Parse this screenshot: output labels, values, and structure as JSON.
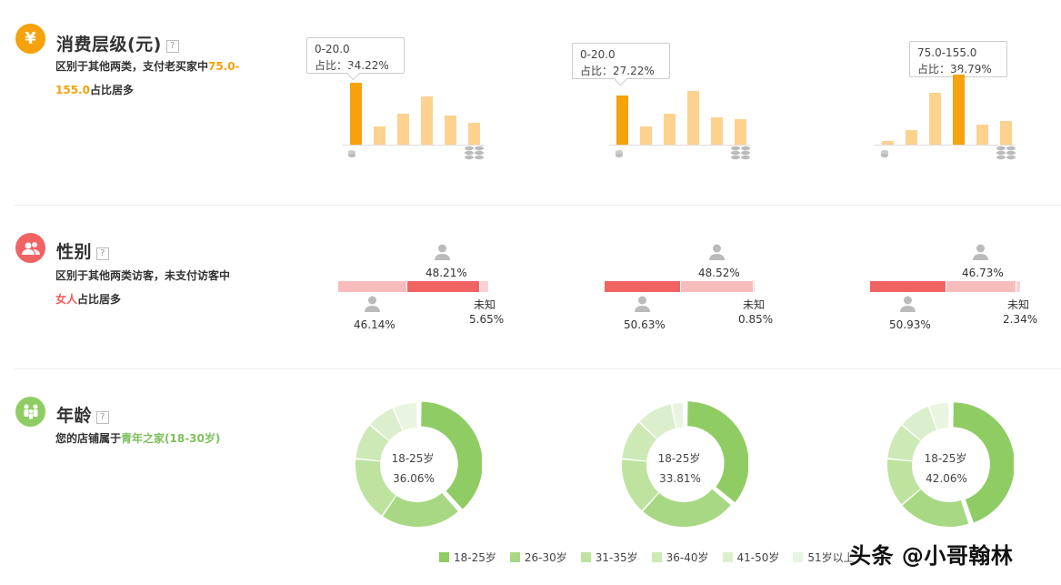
{
  "colors": {
    "orange": "#f5a20c",
    "orange_light": "#fdd28f",
    "red": "#f16363",
    "red_light": "#f8bcbc",
    "green": [
      "#8fcd64",
      "#a8d884",
      "#bde39f",
      "#cde9b6",
      "#dcefcd",
      "#e9f5e0"
    ]
  },
  "spending": {
    "title": "消费层级(元)",
    "help": "?",
    "desc_pre": "区别于其他两类，支付老买家中",
    "desc_hl_a": "75.0-",
    "desc_hl_b": "155.0",
    "desc_post": "占比居多",
    "charts": [
      {
        "tooltip_range": "0-20.0",
        "tooltip_pct": "占比：34.22%",
        "values": [
          34.22,
          10,
          17,
          27,
          16,
          12
        ],
        "highlight": 0
      },
      {
        "tooltip_range": "0-20.0",
        "tooltip_pct": "占比：27.22%",
        "values": [
          27.22,
          10,
          17,
          30,
          15,
          14
        ],
        "highlight": 0
      },
      {
        "tooltip_range": "75.0-155.0",
        "tooltip_pct": "占比：38.79%",
        "values": [
          2,
          8,
          29,
          38.79,
          11,
          13
        ],
        "highlight": 3
      }
    ]
  },
  "gender": {
    "title": "性别",
    "help": "?",
    "desc_line1": "区别于其他两类访客，未支付访客中",
    "desc_hl": "女人",
    "desc_post": "占比居多",
    "unknown_label": "未知",
    "charts": [
      {
        "female": "48.21%",
        "male": "46.14%",
        "unknown": "5.65%",
        "female_v": 48.21,
        "male_v": 46.14,
        "unknown_v": 5.65,
        "dominant": "female"
      },
      {
        "female": "48.52%",
        "male": "50.63%",
        "unknown": "0.85%",
        "female_v": 48.52,
        "male_v": 50.63,
        "unknown_v": 0.85,
        "dominant": "male"
      },
      {
        "female": "46.73%",
        "male": "50.93%",
        "unknown": "2.34%",
        "female_v": 46.73,
        "male_v": 50.93,
        "unknown_v": 2.34,
        "dominant": "male"
      }
    ]
  },
  "age": {
    "title": "年龄",
    "help": "?",
    "desc_pre": "您的店铺属于",
    "desc_hl": "青年之家(18-30岁)",
    "legend": [
      "18-25岁",
      "26-30岁",
      "31-35岁",
      "36-40岁",
      "41-50岁",
      "51岁以上"
    ],
    "charts": [
      {
        "center_label": "18-25岁",
        "center_pct": "36.06%",
        "values": [
          36.06,
          20,
          16,
          9,
          7,
          6
        ]
      },
      {
        "center_label": "18-25岁",
        "center_pct": "33.81%",
        "values": [
          33.81,
          24,
          14,
          10,
          9,
          3
        ]
      },
      {
        "center_label": "18-25岁",
        "center_pct": "42.06%",
        "values": [
          42.06,
          18,
          12,
          9,
          8,
          5
        ]
      }
    ]
  },
  "watermark": "头条 @小哥翰林"
}
